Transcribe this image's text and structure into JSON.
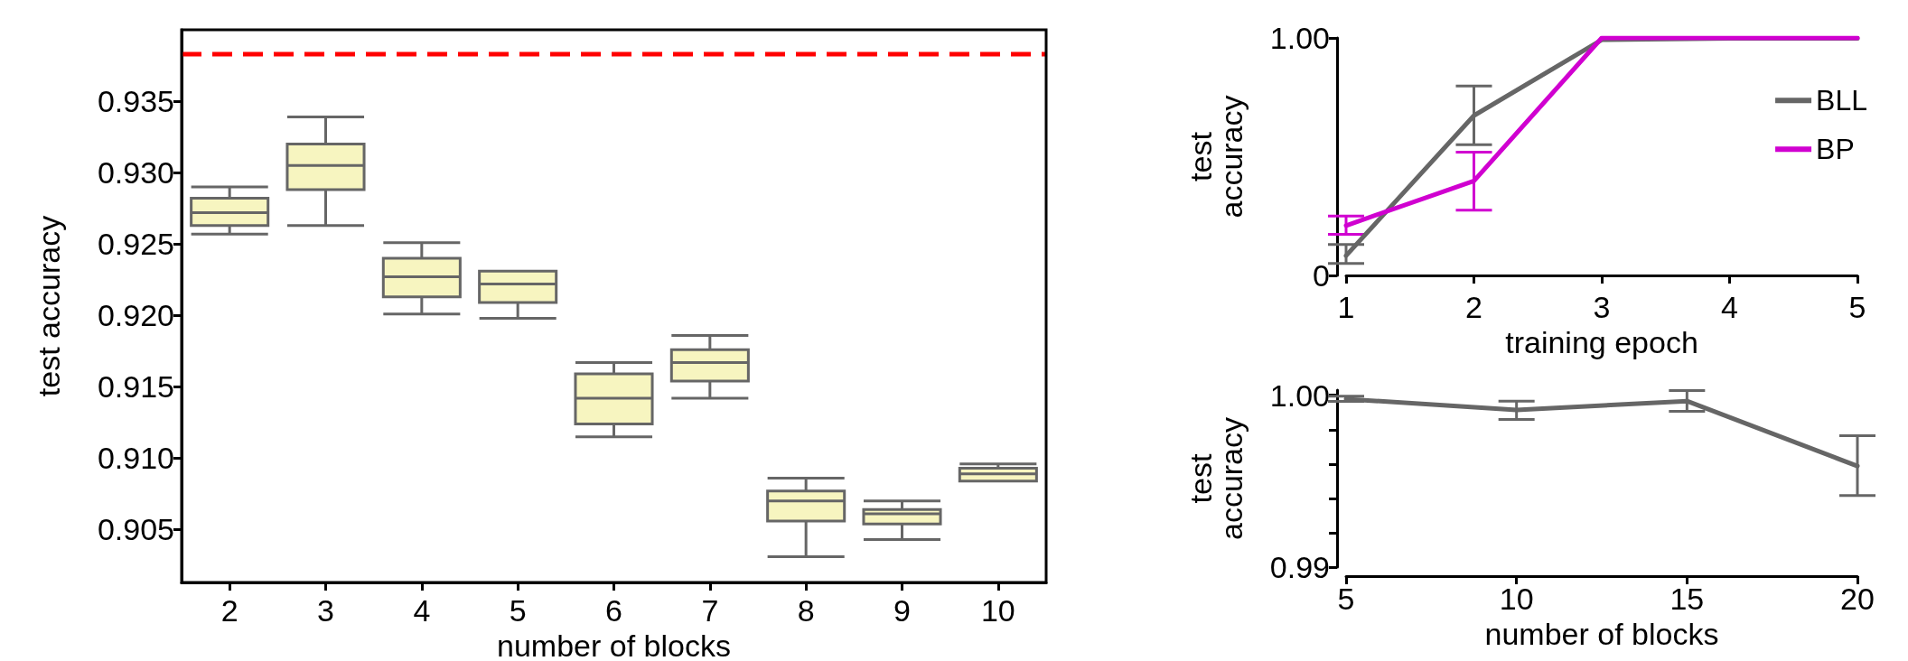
{
  "chart_data": [
    {
      "type": "box",
      "xlabel": "number of blocks",
      "ylabel": "test accuracy",
      "categories": [
        "2",
        "3",
        "4",
        "5",
        "6",
        "7",
        "8",
        "9",
        "10"
      ],
      "series": [
        {
          "color": "#f7f5c0",
          "boxes": [
            {
              "low": 0.9257,
              "q1": 0.9263,
              "median": 0.9272,
              "q3": 0.9282,
              "high": 0.929
            },
            {
              "low": 0.9263,
              "q1": 0.9288,
              "median": 0.9305,
              "q3": 0.932,
              "high": 0.9339
            },
            {
              "low": 0.9201,
              "q1": 0.9213,
              "median": 0.9227,
              "q3": 0.924,
              "high": 0.9251
            },
            {
              "low": 0.9198,
              "q1": 0.9209,
              "median": 0.9222,
              "q3": 0.9231,
              "high": 0.9231
            },
            {
              "low": 0.9115,
              "q1": 0.9124,
              "median": 0.9142,
              "q3": 0.9159,
              "high": 0.9167
            },
            {
              "low": 0.9142,
              "q1": 0.9154,
              "median": 0.9167,
              "q3": 0.9176,
              "high": 0.9186
            },
            {
              "low": 0.9031,
              "q1": 0.9056,
              "median": 0.907,
              "q3": 0.9077,
              "high": 0.9086
            },
            {
              "low": 0.9043,
              "q1": 0.9054,
              "median": 0.9061,
              "q3": 0.9064,
              "high": 0.907
            },
            {
              "low": 0.9084,
              "q1": 0.9084,
              "median": 0.9089,
              "q3": 0.9093,
              "high": 0.9096
            }
          ]
        }
      ],
      "ylim": [
        0.9013,
        0.94
      ],
      "yticks": [
        {
          "value": 0.905,
          "label": "0.905"
        },
        {
          "value": 0.91,
          "label": "0.910"
        },
        {
          "value": 0.915,
          "label": "0.915"
        },
        {
          "value": 0.92,
          "label": "0.920"
        },
        {
          "value": 0.925,
          "label": "0.925"
        },
        {
          "value": 0.93,
          "label": "0.930"
        },
        {
          "value": 0.935,
          "label": "0.935"
        }
      ],
      "ref_lines": [
        {
          "axis": "y",
          "value": 0.9383,
          "color": "#ff0000",
          "line_style": "dashed"
        }
      ],
      "grid": false,
      "legend": false
    },
    {
      "type": "line",
      "xlabel": "training epoch",
      "ylabel": "test accuracy",
      "x": [
        1,
        2,
        3,
        4,
        5
      ],
      "series": [
        {
          "name": "BLL",
          "color": "#666666",
          "values": [
            0.083,
            0.673,
            0.992,
            0.998,
            0.998
          ],
          "errors": [
            [
              0.05,
              0.13
            ],
            [
              0.55,
              0.798
            ],
            null,
            null,
            null
          ]
        },
        {
          "name": "BP",
          "color": "#d000d0",
          "values": [
            0.21,
            0.398,
            1.0,
            1.0,
            1.0
          ],
          "errors": [
            [
              0.173,
              0.25
            ],
            [
              0.275,
              0.519
            ],
            null,
            null,
            null
          ]
        }
      ],
      "xlim": [
        1,
        5
      ],
      "xticks": [
        1,
        2,
        3,
        4,
        5
      ],
      "ylim": [
        0,
        1
      ],
      "yticks": [
        0,
        {
          "value": 1,
          "label": "1.00"
        }
      ],
      "grid": false,
      "legend": "top right",
      "marker": "none",
      "line_style": "solid"
    },
    {
      "type": "line",
      "xlabel": "number of blocks",
      "ylabel": "test accuracy",
      "x": [
        5,
        10,
        15,
        20
      ],
      "series": [
        {
          "color": "#666666",
          "values": [
            0.99978,
            0.99914,
            0.99966,
            0.99588
          ],
          "errors": [
            [
              0.99964,
              0.99994
            ],
            [
              0.99859,
              0.99966
            ],
            [
              0.99906,
              1.00028
            ],
            [
              0.99417,
              0.99765
            ]
          ]
        }
      ],
      "xlim": [
        5,
        20
      ],
      "xticks": [
        5,
        10,
        15,
        20
      ],
      "ylim": [
        0.99,
        1.0003
      ],
      "yticks": [
        {
          "value": 0.99,
          "label": "0.99"
        },
        {
          "value": 0.992,
          "label": null
        },
        {
          "value": 0.994,
          "label": null
        },
        {
          "value": 0.996,
          "label": null
        },
        {
          "value": 0.998,
          "label": null
        },
        {
          "value": 1,
          "label": "1.00"
        }
      ],
      "grid": false,
      "legend": false,
      "marker": "none",
      "line_style": "solid"
    }
  ]
}
